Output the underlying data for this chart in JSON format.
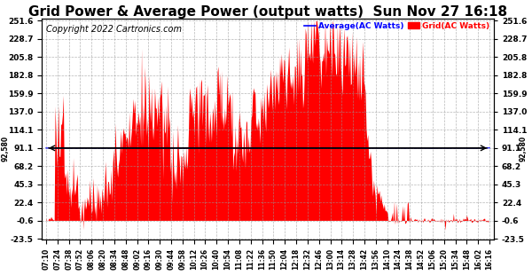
{
  "title": "Grid Power & Average Power (output watts)  Sun Nov 27 16:18",
  "copyright": "Copyright 2022 Cartronics.com",
  "legend_avg": "Average(AC Watts)",
  "legend_grid": "Grid(AC Watts)",
  "yticks": [
    251.6,
    228.7,
    205.8,
    182.8,
    159.9,
    137.0,
    114.1,
    91.1,
    68.2,
    45.3,
    22.4,
    -0.6,
    -23.5
  ],
  "ylim_min": -23.5,
  "ylim_max": 251.6,
  "avg_line_value": 91.1,
  "avg_label": "92,580",
  "grid_color": "#FF0000",
  "avg_color": "#0000FF",
  "background_color": "#FFFFFF",
  "title_fontsize": 11,
  "copyright_fontsize": 7,
  "x_labels": [
    "07:10",
    "07:24",
    "07:38",
    "07:52",
    "08:06",
    "08:20",
    "08:34",
    "08:48",
    "09:02",
    "09:16",
    "09:30",
    "09:44",
    "09:58",
    "10:12",
    "10:26",
    "10:40",
    "10:54",
    "11:08",
    "11:22",
    "11:36",
    "11:50",
    "12:04",
    "12:18",
    "12:32",
    "12:46",
    "13:00",
    "13:14",
    "13:28",
    "13:42",
    "13:56",
    "14:10",
    "14:24",
    "14:38",
    "14:52",
    "15:06",
    "15:20",
    "15:34",
    "15:48",
    "16:02",
    "16:16"
  ]
}
